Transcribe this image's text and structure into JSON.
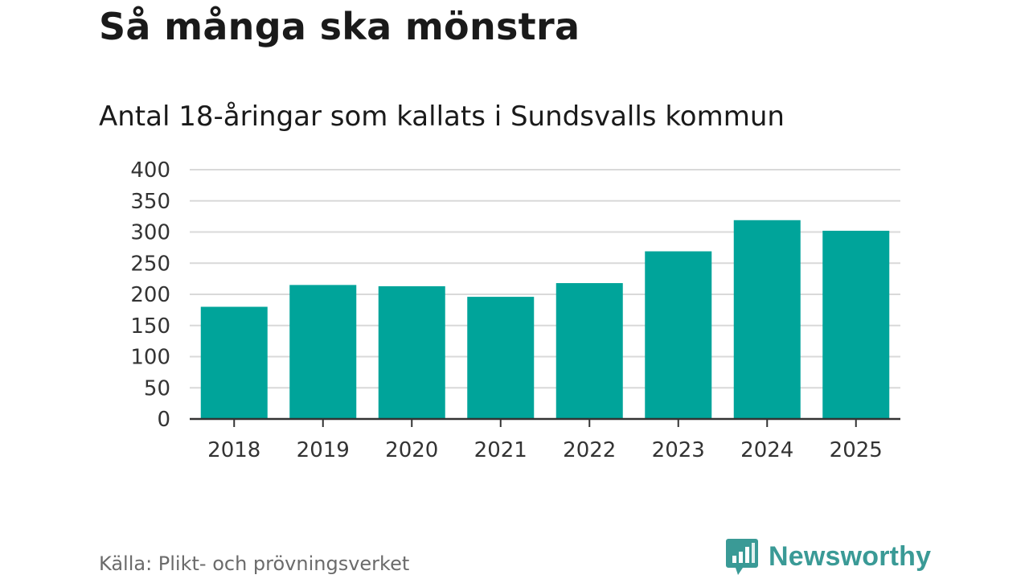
{
  "chart_data": {
    "type": "bar",
    "title": "Så många ska mönstra",
    "subtitle": "Antal 18-åringar som kallats i Sundsvalls kommun",
    "categories": [
      "2018",
      "2019",
      "2020",
      "2021",
      "2022",
      "2023",
      "2024",
      "2025"
    ],
    "values": [
      180,
      215,
      213,
      196,
      218,
      269,
      319,
      302
    ],
    "ylim": [
      0,
      400
    ],
    "yticks": [
      "0",
      "50",
      "100",
      "150",
      "200",
      "250",
      "300",
      "350",
      "400"
    ],
    "xlabel": "",
    "ylabel": "",
    "grid": true,
    "legend": "none",
    "bar_color": "#00a49a",
    "grid_color": "#d9d9d9",
    "axis_color": "#333333"
  },
  "footer": {
    "source": "Källa: Plikt- och prövningsverket",
    "brand": "Newsworthy",
    "brand_color": "#3a9a96",
    "brand_icon": "newsworthy-bar-chart-logo-icon"
  }
}
